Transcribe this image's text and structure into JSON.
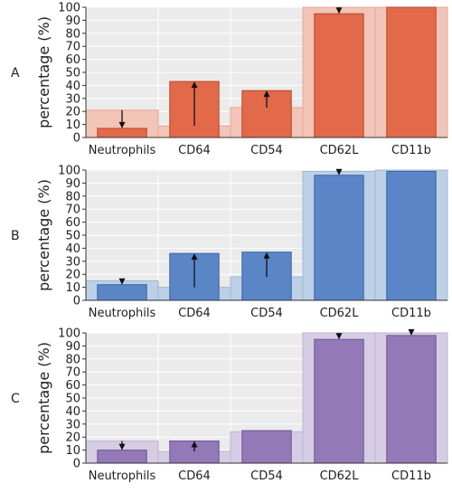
{
  "chart_data": [
    {
      "type": "bar",
      "panel_label": "A",
      "ylabel": "percentage (%)",
      "ylim": [
        0,
        100
      ],
      "yticks": [
        0,
        10,
        20,
        30,
        40,
        50,
        60,
        70,
        80,
        90,
        100
      ],
      "categories": [
        "Neutrophils",
        "CD64",
        "CD54",
        "CD62L",
        "CD11b"
      ],
      "grid": true,
      "series": [
        {
          "role": "background",
          "values": [
            21,
            9,
            23,
            100,
            100
          ]
        },
        {
          "role": "foreground",
          "values": [
            7,
            43,
            36,
            95,
            100
          ]
        }
      ],
      "arrows": [
        "down",
        "up",
        "up",
        "down",
        "none"
      ],
      "colors": {
        "foreground": "#e2694a",
        "background": "#f3c4b8",
        "foreground_edge": "#b8472a",
        "background_edge": "#e8a698"
      }
    },
    {
      "type": "bar",
      "panel_label": "B",
      "ylabel": "percentage (%)",
      "ylim": [
        0,
        100
      ],
      "yticks": [
        0,
        10,
        20,
        30,
        40,
        50,
        60,
        70,
        80,
        90,
        100
      ],
      "categories": [
        "Neutrophils",
        "CD64",
        "CD54",
        "CD62L",
        "CD11b"
      ],
      "grid": true,
      "series": [
        {
          "role": "background",
          "values": [
            15,
            10,
            18,
            99,
            100
          ]
        },
        {
          "role": "foreground",
          "values": [
            12,
            36,
            37,
            96,
            99
          ]
        }
      ],
      "arrows": [
        "down",
        "up",
        "up",
        "down",
        "none"
      ],
      "colors": {
        "foreground": "#5a86c8",
        "background": "#bcd0e6",
        "foreground_edge": "#3a64a6",
        "background_edge": "#9fb8d6"
      }
    },
    {
      "type": "bar",
      "panel_label": "C",
      "ylabel": "percentage (%)",
      "ylim": [
        0,
        100
      ],
      "yticks": [
        0,
        10,
        20,
        30,
        40,
        50,
        60,
        70,
        80,
        90,
        100
      ],
      "categories": [
        "Neutrophils",
        "CD64",
        "CD54",
        "CD62L",
        "CD11b"
      ],
      "grid": true,
      "series": [
        {
          "role": "background",
          "values": [
            17,
            9,
            24,
            100,
            100
          ]
        },
        {
          "role": "foreground",
          "values": [
            10,
            17,
            25,
            95,
            98
          ]
        }
      ],
      "arrows": [
        "down",
        "up",
        "none",
        "down",
        "down"
      ],
      "colors": {
        "foreground": "#9379b8",
        "background": "#d6cde4",
        "foreground_edge": "#6c5490",
        "background_edge": "#bfb2d6"
      }
    }
  ]
}
